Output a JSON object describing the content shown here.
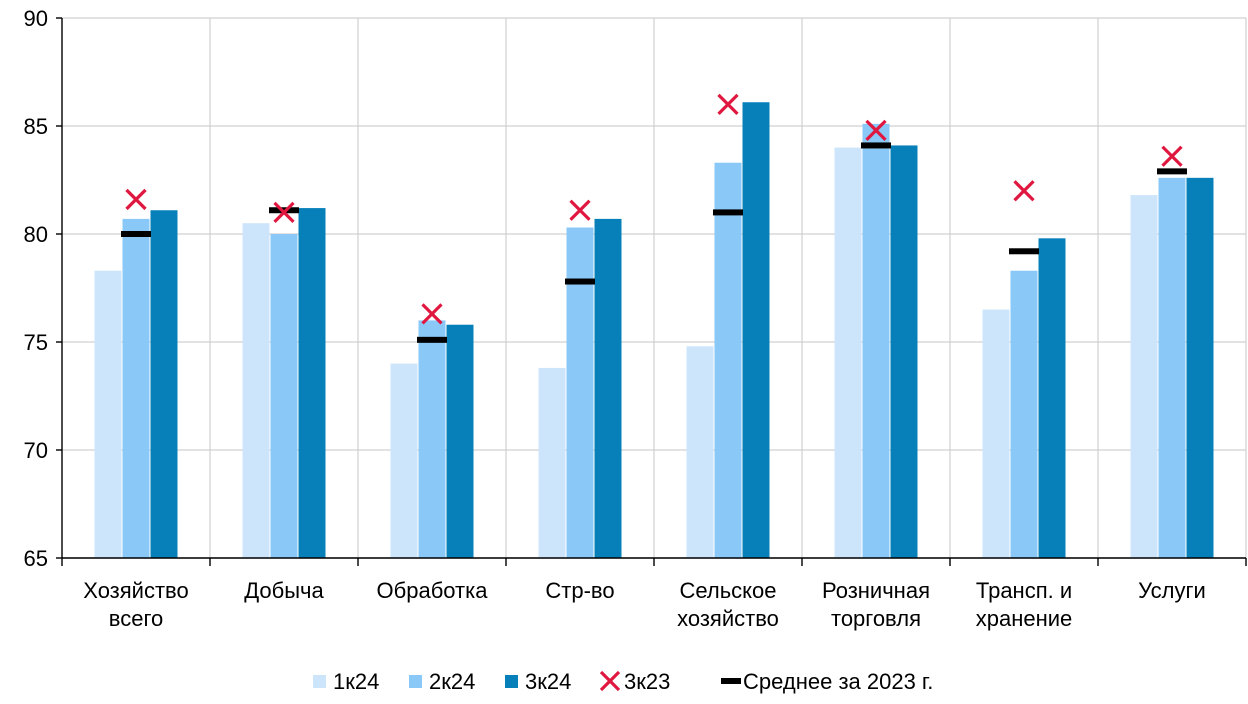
{
  "chart_data": {
    "type": "bar",
    "categories": [
      [
        "Хозяйство",
        "всего"
      ],
      [
        "Добыча"
      ],
      [
        "Обработка"
      ],
      [
        "Стр-во"
      ],
      [
        "Сельское",
        "хозяйство"
      ],
      [
        "Розничная",
        "торговля"
      ],
      [
        "Трансп. и",
        "хранение"
      ],
      [
        "Услуги"
      ]
    ],
    "series": [
      {
        "name": "1к24",
        "kind": "bar",
        "color": "#cce5fb",
        "values": [
          78.3,
          80.5,
          74.0,
          73.8,
          74.8,
          84.0,
          76.5,
          81.8
        ]
      },
      {
        "name": "2к24",
        "kind": "bar",
        "color": "#8ac8f7",
        "values": [
          80.7,
          80.0,
          76.0,
          80.3,
          83.3,
          85.1,
          78.3,
          82.6
        ]
      },
      {
        "name": "3к24",
        "kind": "bar",
        "color": "#0780b9",
        "values": [
          81.1,
          81.2,
          75.8,
          80.7,
          86.1,
          84.1,
          79.8,
          82.6
        ]
      },
      {
        "name": "3к23",
        "kind": "marker-x",
        "color": "#e0173f",
        "values": [
          81.6,
          81.0,
          76.3,
          81.1,
          86.0,
          84.8,
          82.0,
          83.6
        ]
      },
      {
        "name": "Среднее за 2023 г.",
        "kind": "marker-dash",
        "color": "#000000",
        "values": [
          80.0,
          81.1,
          75.1,
          77.8,
          81.0,
          84.1,
          79.2,
          82.9
        ]
      }
    ],
    "ylim": [
      65,
      90
    ],
    "yticks": [
      "65",
      "70",
      "75",
      "80",
      "85",
      "90"
    ],
    "grid": "vertical",
    "legend": "bottom"
  }
}
